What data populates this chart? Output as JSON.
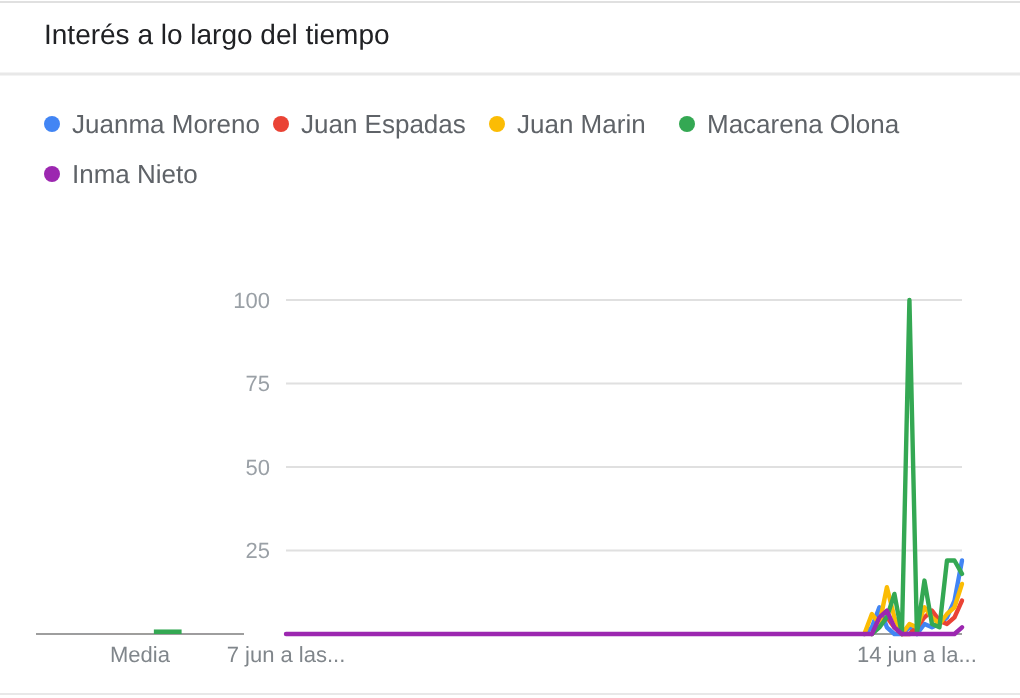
{
  "chart_data": [
    {
      "type": "bar",
      "categories": [
        "Media"
      ],
      "ylim": [
        0,
        100
      ],
      "tick_labels": "x",
      "series": [
        {
          "color": "#4285f4",
          "values": [
            0
          ]
        },
        {
          "color": "#ea4335",
          "values": [
            0
          ]
        },
        {
          "color": "#fbbc04",
          "values": [
            0
          ]
        },
        {
          "color": "#34a853",
          "values": [
            1
          ]
        },
        {
          "color": "#9c27b0",
          "values": [
            0
          ]
        }
      ]
    },
    {
      "type": "line",
      "title": "Interés a lo largo del tiempo",
      "legend": "top",
      "grid": "y",
      "ylim": [
        0,
        100
      ],
      "yticks": [
        {
          "value": 0,
          "label": null
        },
        25,
        50,
        75,
        100
      ],
      "categories": [
        "7 jun a las...",
        null,
        null,
        null,
        null,
        null,
        null,
        null,
        null,
        null,
        null,
        null,
        null,
        null,
        null,
        null,
        null,
        null,
        null,
        null,
        null,
        null,
        null,
        null,
        null,
        null,
        null,
        null,
        null,
        null,
        null,
        null,
        null,
        null,
        null,
        null,
        null,
        null,
        null,
        null,
        null,
        null,
        null,
        null,
        null,
        null,
        null,
        null,
        null,
        null,
        null,
        null,
        null,
        null,
        null,
        null,
        null,
        null,
        null,
        null,
        null,
        null,
        null,
        null,
        null,
        null,
        null,
        null,
        null,
        null,
        null,
        null,
        null,
        null,
        null,
        null,
        null,
        null,
        null,
        null,
        null,
        null,
        null,
        null,
        "14 jun a la...",
        null,
        null,
        null,
        null,
        null,
        null
      ],
      "series": [
        {
          "name": "Juanma Moreno",
          "color": "#4285f4",
          "values": [
            null,
            null,
            null,
            null,
            null,
            null,
            null,
            null,
            null,
            null,
            null,
            null,
            null,
            null,
            null,
            null,
            null,
            null,
            null,
            null,
            null,
            null,
            null,
            null,
            null,
            null,
            null,
            null,
            null,
            null,
            null,
            null,
            null,
            null,
            null,
            null,
            null,
            null,
            null,
            null,
            null,
            null,
            null,
            null,
            null,
            null,
            null,
            null,
            null,
            null,
            null,
            null,
            null,
            null,
            null,
            null,
            null,
            null,
            null,
            null,
            null,
            null,
            null,
            null,
            null,
            null,
            null,
            null,
            null,
            null,
            null,
            null,
            null,
            null,
            null,
            null,
            null,
            0,
            2,
            8,
            2,
            0,
            0,
            2,
            0,
            3,
            2,
            3,
            5,
            10,
            22
          ]
        },
        {
          "name": "Juan Espadas",
          "color": "#ea4335",
          "values": [
            null,
            null,
            null,
            null,
            null,
            null,
            null,
            null,
            null,
            null,
            null,
            null,
            null,
            null,
            null,
            null,
            null,
            null,
            null,
            null,
            null,
            null,
            null,
            null,
            null,
            null,
            null,
            null,
            null,
            null,
            null,
            null,
            null,
            null,
            null,
            null,
            null,
            null,
            null,
            null,
            null,
            null,
            null,
            null,
            null,
            null,
            null,
            null,
            null,
            null,
            null,
            null,
            null,
            null,
            null,
            null,
            null,
            null,
            null,
            null,
            null,
            null,
            null,
            null,
            null,
            null,
            null,
            null,
            null,
            null,
            null,
            null,
            null,
            null,
            null,
            null,
            null,
            null,
            0,
            3,
            5,
            2,
            0,
            0,
            2,
            5,
            7,
            4,
            3,
            5,
            10
          ]
        },
        {
          "name": "Juan Marin",
          "color": "#fbbc04",
          "values": [
            null,
            null,
            null,
            null,
            null,
            null,
            null,
            null,
            null,
            null,
            null,
            null,
            null,
            null,
            null,
            null,
            null,
            null,
            null,
            null,
            null,
            null,
            null,
            null,
            null,
            null,
            null,
            null,
            null,
            null,
            null,
            null,
            null,
            null,
            null,
            null,
            null,
            null,
            null,
            null,
            null,
            null,
            null,
            null,
            null,
            null,
            null,
            null,
            null,
            null,
            null,
            null,
            null,
            null,
            null,
            null,
            null,
            null,
            null,
            null,
            null,
            null,
            null,
            null,
            null,
            null,
            null,
            null,
            null,
            null,
            null,
            null,
            null,
            null,
            null,
            null,
            null,
            0,
            6,
            3,
            14,
            5,
            0,
            3,
            2,
            8,
            5,
            3,
            6,
            8,
            15
          ]
        },
        {
          "name": "Macarena Olona",
          "color": "#34a853",
          "values": [
            null,
            null,
            null,
            null,
            null,
            null,
            null,
            null,
            null,
            null,
            null,
            null,
            null,
            null,
            null,
            null,
            null,
            null,
            null,
            null,
            null,
            null,
            null,
            null,
            null,
            null,
            null,
            null,
            null,
            null,
            null,
            null,
            null,
            null,
            null,
            null,
            null,
            null,
            null,
            null,
            null,
            null,
            null,
            null,
            null,
            null,
            null,
            null,
            null,
            null,
            null,
            null,
            null,
            null,
            null,
            null,
            null,
            null,
            null,
            null,
            null,
            null,
            null,
            null,
            null,
            null,
            null,
            null,
            null,
            null,
            null,
            null,
            null,
            null,
            null,
            null,
            null,
            null,
            0,
            2,
            5,
            12,
            0,
            100,
            0,
            16,
            3,
            2,
            22,
            22,
            18
          ]
        },
        {
          "name": "Inma Nieto",
          "color": "#9c27b0",
          "values": [
            0,
            0,
            0,
            0,
            0,
            0,
            0,
            0,
            0,
            0,
            0,
            0,
            0,
            0,
            0,
            0,
            0,
            0,
            0,
            0,
            0,
            0,
            0,
            0,
            0,
            0,
            0,
            0,
            0,
            0,
            0,
            0,
            0,
            0,
            0,
            0,
            0,
            0,
            0,
            0,
            0,
            0,
            0,
            0,
            0,
            0,
            0,
            0,
            0,
            0,
            0,
            0,
            0,
            0,
            0,
            0,
            0,
            0,
            0,
            0,
            0,
            0,
            0,
            0,
            0,
            0,
            0,
            0,
            0,
            0,
            0,
            0,
            0,
            0,
            0,
            0,
            0,
            0,
            0,
            5,
            7,
            2,
            0,
            0,
            0,
            0,
            0,
            0,
            0,
            0,
            2
          ]
        }
      ]
    }
  ]
}
